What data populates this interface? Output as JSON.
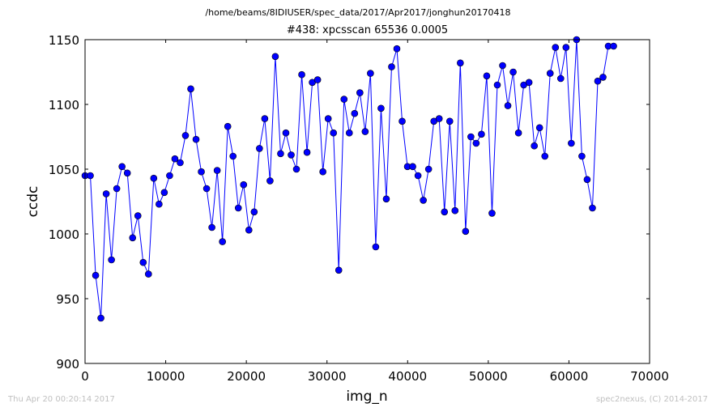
{
  "header": {
    "path": "/home/beams/8IDIUSER/spec_data/2017/Apr2017/jonghun20170418",
    "title": "#438: xpcsscan 65536 0.0005"
  },
  "footer": {
    "timestamp": "Thu Apr 20 00:20:14 2017",
    "credit": "spec2nexus, (C) 2014-2017"
  },
  "colors": {
    "series": "#0000ff",
    "marker": "#0000ff",
    "axes": "#000000"
  },
  "chart_data": {
    "type": "line",
    "title": "#438: xpcsscan 65536 0.0005",
    "xlabel": "img_n",
    "ylabel": "ccdc",
    "xlim": [
      0,
      70000
    ],
    "ylim": [
      900,
      1150
    ],
    "xticks": [
      "0",
      "10000",
      "20000",
      "30000",
      "40000",
      "50000",
      "60000",
      "70000"
    ],
    "yticks": [
      "900",
      "950",
      "1000",
      "1050",
      "1100",
      "1150"
    ],
    "grid": false,
    "x": [
      0,
      655,
      1311,
      1966,
      2621,
      3277,
      3932,
      4588,
      5243,
      5898,
      6554,
      7209,
      7864,
      8520,
      9175,
      9830,
      10486,
      11141,
      11796,
      12452,
      13107,
      13763,
      14418,
      15073,
      15729,
      16384,
      17039,
      17695,
      18350,
      19005,
      19661,
      20316,
      20972,
      21627,
      22282,
      22938,
      23593,
      24248,
      24904,
      25559,
      26214,
      26870,
      27525,
      28180,
      28836,
      29491,
      30147,
      30802,
      31457,
      32113,
      32768,
      33423,
      34079,
      34734,
      35389,
      36045,
      36700,
      37356,
      38011,
      38666,
      39322,
      39977,
      40632,
      41288,
      41943,
      42598,
      43254,
      43909,
      44565,
      45220,
      45875,
      46531,
      47186,
      47841,
      48497,
      49152,
      49807,
      50463,
      51118,
      51774,
      52429,
      53084,
      53740,
      54395,
      55050,
      55706,
      56361,
      57016,
      57672,
      58327,
      58982,
      59638,
      60293,
      60949,
      61604,
      62259,
      62915,
      63570,
      64225,
      64881,
      65536
    ],
    "y": [
      1045,
      1045,
      968,
      935,
      1031,
      980,
      1035,
      1052,
      1047,
      997,
      1014,
      978,
      969,
      1043,
      1023,
      1032,
      1045,
      1058,
      1055,
      1076,
      1112,
      1073,
      1048,
      1035,
      1005,
      1049,
      994,
      1083,
      1060,
      1020,
      1038,
      1003,
      1017,
      1066,
      1089,
      1041,
      1137,
      1062,
      1078,
      1061,
      1050,
      1123,
      1063,
      1117,
      1119,
      1048,
      1089,
      1078,
      972,
      1104,
      1078,
      1093,
      1109,
      1079,
      1124,
      990,
      1097,
      1027,
      1129,
      1143,
      1087,
      1052,
      1052,
      1045,
      1026,
      1050,
      1087,
      1089,
      1017,
      1087,
      1018,
      1132,
      1002,
      1075,
      1070,
      1077,
      1122,
      1016,
      1115,
      1130,
      1099,
      1125,
      1078,
      1115,
      1117,
      1068,
      1082,
      1060,
      1124,
      1144,
      1120,
      1144,
      1070,
      1150,
      1060,
      1042,
      1020,
      1118,
      1121,
      1145,
      1145
    ]
  }
}
